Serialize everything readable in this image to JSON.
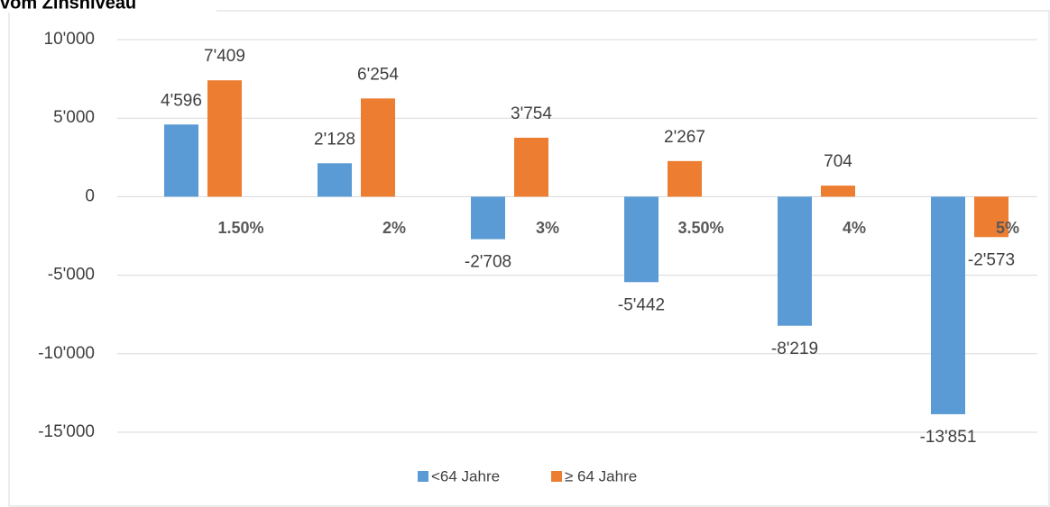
{
  "chart_data": {
    "type": "bar",
    "title": "vom Zinsniveau",
    "categories": [
      "1.50%",
      "2%",
      "3%",
      "3.50%",
      "4%",
      "5%"
    ],
    "series": [
      {
        "name": "<64 Jahre",
        "color": "#5b9bd5",
        "values": [
          4596,
          2128,
          -2708,
          -5442,
          -8219,
          -13851
        ],
        "value_labels": [
          "4'596",
          "2'128",
          "-2'708",
          "-5'442",
          "-8'219",
          "-13'851"
        ]
      },
      {
        "name": "≥ 64 Jahre",
        "color": "#ed7d31",
        "values": [
          7409,
          6254,
          3754,
          2267,
          704,
          -2573
        ],
        "value_labels": [
          "7'409",
          "6'254",
          "3'754",
          "2'267",
          "704",
          "-2'573"
        ]
      }
    ],
    "ylim": [
      -15000,
      10000
    ],
    "yticks": [
      {
        "value": -15000,
        "label": "-15'000"
      },
      {
        "value": -10000,
        "label": "-10'000"
      },
      {
        "value": -5000,
        "label": "-5'000"
      },
      0,
      {
        "value": 5000,
        "label": "5'000"
      },
      {
        "value": 10000,
        "label": "10'000"
      }
    ],
    "grid": true
  }
}
